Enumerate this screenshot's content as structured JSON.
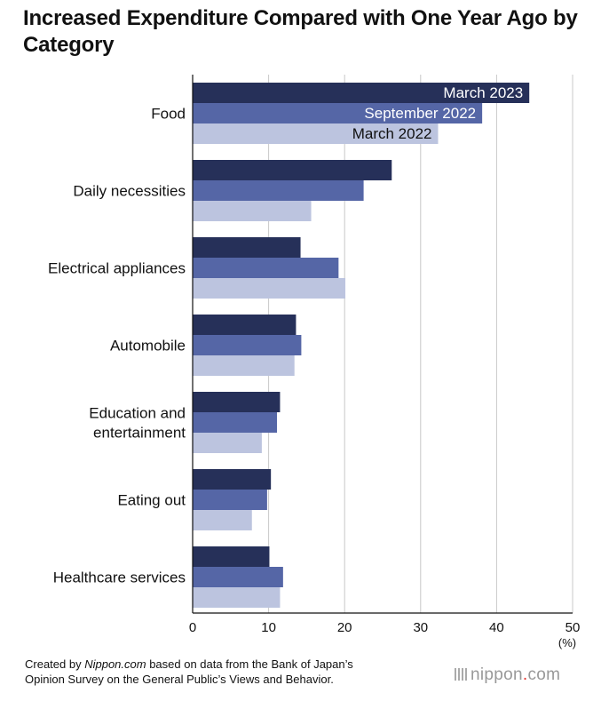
{
  "title": "Increased Expenditure Compared with One Year Ago by Category",
  "footer": {
    "prefix": "Created by ",
    "site": "Nippon.com",
    "line1_rest": " based on data from the Bank of Japan’s",
    "line2": "Opinion Survey on the General Public’s Views and Behavior."
  },
  "logo": {
    "pre": "nippon",
    "dot": ".",
    "post": "com"
  },
  "colors": {
    "March 2023": "#263059",
    "September 2022": "#5566a6",
    "March 2022": "#bcc4df",
    "grid": "#c8c8c8"
  },
  "chart_data": {
    "type": "bar",
    "orientation": "horizontal",
    "title": "Increased Expenditure Compared with One Year Ago by Category",
    "categories": [
      [
        "Food"
      ],
      [
        "Daily necessities"
      ],
      [
        "Electrical appliances"
      ],
      [
        "Automobile"
      ],
      [
        "Education and",
        "entertainment"
      ],
      [
        "Eating out"
      ],
      [
        "Healthcare services"
      ]
    ],
    "series": [
      {
        "name": "March 2023",
        "values": [
          44.3,
          26.2,
          14.2,
          13.6,
          11.5,
          10.3,
          10.1
        ]
      },
      {
        "name": "September 2022",
        "values": [
          38.1,
          22.5,
          19.2,
          14.3,
          11.1,
          9.8,
          11.9
        ]
      },
      {
        "name": "March 2022",
        "values": [
          32.3,
          15.6,
          20.1,
          13.4,
          9.1,
          7.8,
          11.5
        ]
      }
    ],
    "xlim": [
      0,
      50
    ],
    "xticks": [
      0,
      10,
      20,
      30,
      40,
      50
    ],
    "xunit": "(%)",
    "xlabel": "",
    "ylabel": "",
    "grid": true,
    "legend": "inside bars of first category"
  }
}
